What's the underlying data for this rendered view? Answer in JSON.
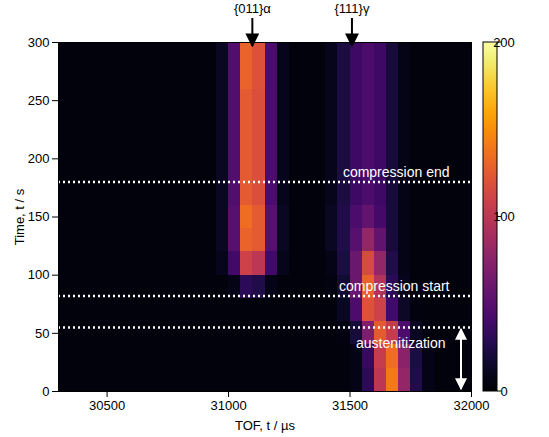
{
  "chart_data": {
    "type": "heatmap",
    "x_label": "TOF, t / µs",
    "y_label": "Time, t / s",
    "xlim": [
      30300,
      32000
    ],
    "xticks": [
      30500,
      31000,
      31500,
      32000
    ],
    "ylim": [
      0,
      300
    ],
    "yticks": [
      0,
      50,
      100,
      150,
      200,
      250,
      300
    ],
    "color": "inferno",
    "colorbar": {
      "range": [
        0,
        200
      ],
      "ticks": [
        0,
        100,
        200
      ]
    },
    "x_bins": [
      30300,
      30350,
      30400,
      30450,
      30500,
      30550,
      30600,
      30650,
      30700,
      30750,
      30800,
      30850,
      30900,
      30950,
      31000,
      31050,
      31100,
      31150,
      31200,
      31250,
      31300,
      31350,
      31400,
      31450,
      31500,
      31550,
      31600,
      31650,
      31700,
      31750,
      31800,
      31850,
      31900,
      31950,
      32000
    ],
    "y_bins": [
      0,
      20,
      40,
      60,
      80,
      100,
      120,
      140,
      160,
      180,
      200,
      220,
      240,
      260,
      280,
      300
    ],
    "cells": [
      [
        4,
        4,
        4,
        4,
        4,
        4,
        4,
        4,
        4,
        4,
        4,
        4,
        4,
        4,
        4,
        4,
        4,
        4,
        4,
        4,
        4,
        4,
        4,
        4,
        8,
        30,
        100,
        140,
        80,
        25,
        8,
        4,
        4,
        4
      ],
      [
        4,
        4,
        4,
        4,
        4,
        4,
        4,
        4,
        4,
        4,
        4,
        4,
        4,
        4,
        4,
        4,
        4,
        4,
        4,
        4,
        4,
        4,
        4,
        4,
        8,
        35,
        105,
        135,
        75,
        22,
        8,
        4,
        4,
        4
      ],
      [
        4,
        4,
        4,
        4,
        4,
        4,
        4,
        4,
        4,
        4,
        4,
        4,
        4,
        4,
        4,
        4,
        4,
        4,
        4,
        4,
        4,
        4,
        4,
        6,
        20,
        70,
        125,
        105,
        45,
        12,
        5,
        4,
        4,
        4
      ],
      [
        4,
        4,
        4,
        4,
        4,
        4,
        4,
        4,
        4,
        4,
        4,
        4,
        4,
        4,
        4,
        4,
        4,
        4,
        4,
        4,
        4,
        4,
        4,
        12,
        45,
        120,
        110,
        40,
        14,
        5,
        4,
        4,
        4,
        4
      ],
      [
        4,
        4,
        4,
        4,
        4,
        4,
        4,
        4,
        4,
        4,
        4,
        4,
        4,
        4,
        8,
        30,
        25,
        8,
        4,
        4,
        4,
        4,
        6,
        18,
        60,
        130,
        95,
        30,
        10,
        4,
        4,
        4,
        4,
        4
      ],
      [
        4,
        4,
        4,
        4,
        4,
        4,
        4,
        4,
        4,
        4,
        4,
        4,
        4,
        10,
        40,
        110,
        100,
        40,
        10,
        4,
        4,
        4,
        8,
        22,
        60,
        115,
        80,
        25,
        8,
        4,
        4,
        4,
        4,
        4
      ],
      [
        4,
        4,
        4,
        4,
        4,
        4,
        4,
        4,
        4,
        4,
        4,
        4,
        4,
        12,
        50,
        130,
        125,
        50,
        12,
        4,
        4,
        4,
        12,
        25,
        50,
        80,
        55,
        20,
        8,
        4,
        4,
        4,
        4,
        4
      ],
      [
        4,
        4,
        4,
        4,
        4,
        4,
        4,
        4,
        4,
        4,
        4,
        4,
        4,
        12,
        50,
        135,
        125,
        50,
        12,
        4,
        4,
        4,
        12,
        25,
        45,
        55,
        42,
        20,
        8,
        4,
        4,
        4,
        4,
        4
      ],
      [
        4,
        4,
        4,
        4,
        4,
        4,
        4,
        4,
        4,
        4,
        4,
        4,
        4,
        12,
        48,
        125,
        118,
        45,
        10,
        4,
        4,
        4,
        10,
        22,
        38,
        45,
        38,
        20,
        8,
        4,
        4,
        4,
        4,
        4
      ],
      [
        4,
        4,
        4,
        4,
        4,
        4,
        4,
        4,
        4,
        4,
        4,
        4,
        4,
        12,
        48,
        125,
        118,
        45,
        10,
        4,
        4,
        4,
        10,
        22,
        38,
        45,
        38,
        20,
        8,
        4,
        4,
        4,
        4,
        4
      ],
      [
        4,
        4,
        4,
        4,
        4,
        4,
        4,
        4,
        4,
        4,
        4,
        4,
        4,
        12,
        48,
        125,
        118,
        45,
        10,
        4,
        4,
        4,
        10,
        22,
        38,
        45,
        38,
        20,
        8,
        4,
        4,
        4,
        4,
        4
      ],
      [
        4,
        4,
        4,
        4,
        4,
        4,
        4,
        4,
        4,
        4,
        4,
        4,
        4,
        12,
        48,
        125,
        118,
        45,
        10,
        4,
        4,
        4,
        10,
        22,
        38,
        45,
        38,
        20,
        8,
        4,
        4,
        4,
        4,
        4
      ],
      [
        4,
        4,
        4,
        4,
        4,
        4,
        4,
        4,
        4,
        4,
        4,
        4,
        4,
        12,
        48,
        125,
        118,
        45,
        10,
        4,
        4,
        4,
        10,
        22,
        38,
        45,
        38,
        20,
        8,
        4,
        4,
        4,
        4,
        4
      ],
      [
        4,
        4,
        4,
        4,
        4,
        4,
        4,
        4,
        4,
        4,
        4,
        4,
        4,
        12,
        48,
        130,
        120,
        45,
        10,
        4,
        4,
        4,
        10,
        22,
        38,
        45,
        38,
        20,
        8,
        4,
        4,
        4,
        4,
        4
      ],
      [
        4,
        4,
        4,
        4,
        4,
        4,
        4,
        4,
        4,
        4,
        4,
        4,
        4,
        12,
        48,
        130,
        120,
        45,
        10,
        4,
        4,
        4,
        10,
        22,
        38,
        45,
        38,
        20,
        8,
        4,
        4,
        4,
        4,
        4
      ]
    ],
    "peak_labels": [
      {
        "text": "{011}α",
        "x": 31100
      },
      {
        "text": "{111}γ",
        "x": 31510
      }
    ],
    "lines": [
      180,
      82,
      55
    ],
    "annotations": [
      {
        "text": "compression end",
        "y": 180
      },
      {
        "text": "compression start",
        "y": 82
      },
      {
        "text": "austenitization",
        "y1": 0,
        "y2": 55
      }
    ]
  }
}
